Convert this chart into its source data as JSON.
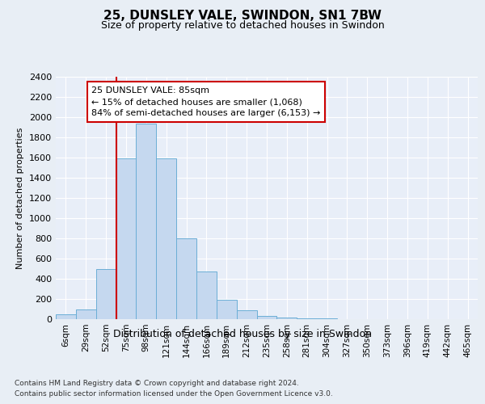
{
  "title": "25, DUNSLEY VALE, SWINDON, SN1 7BW",
  "subtitle": "Size of property relative to detached houses in Swindon",
  "xlabel": "Distribution of detached houses by size in Swindon",
  "ylabel": "Number of detached properties",
  "categories": [
    "6sqm",
    "29sqm",
    "52sqm",
    "75sqm",
    "98sqm",
    "121sqm",
    "144sqm",
    "166sqm",
    "189sqm",
    "212sqm",
    "235sqm",
    "258sqm",
    "281sqm",
    "304sqm",
    "327sqm",
    "350sqm",
    "373sqm",
    "396sqm",
    "419sqm",
    "442sqm",
    "465sqm"
  ],
  "values": [
    50,
    100,
    500,
    1590,
    1940,
    1590,
    800,
    470,
    195,
    85,
    30,
    20,
    10,
    10,
    0,
    0,
    0,
    0,
    0,
    0,
    0
  ],
  "bar_color": "#c5d8ef",
  "bar_edge_color": "#6baed6",
  "vline_index": 3,
  "vline_color": "#cc0000",
  "annotation_text": "25 DUNSLEY VALE: 85sqm\n← 15% of detached houses are smaller (1,068)\n84% of semi-detached houses are larger (6,153) →",
  "annotation_box_color": "#ffffff",
  "annotation_box_edge_color": "#cc0000",
  "ylim": [
    0,
    2400
  ],
  "yticks": [
    0,
    200,
    400,
    600,
    800,
    1000,
    1200,
    1400,
    1600,
    1800,
    2000,
    2200,
    2400
  ],
  "bg_color": "#e8eef5",
  "plot_bg_color": "#e8eef8",
  "footer_line1": "Contains HM Land Registry data © Crown copyright and database right 2024.",
  "footer_line2": "Contains public sector information licensed under the Open Government Licence v3.0."
}
